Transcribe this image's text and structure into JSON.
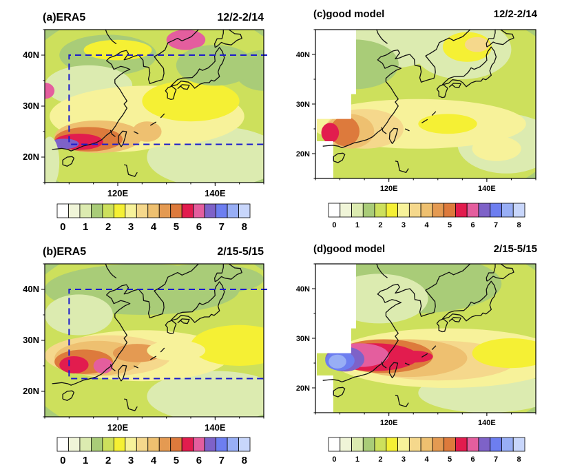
{
  "colorbar": {
    "colors": [
      "#ffffff",
      "#f0f5d8",
      "#dcebb0",
      "#a9cc78",
      "#cde05c",
      "#f5f034",
      "#f7f29a",
      "#f5d88c",
      "#eec070",
      "#e49a52",
      "#dd7a3c",
      "#e21c4e",
      "#e45e9e",
      "#7e62c8",
      "#6d7ef0",
      "#98aef5",
      "#c8d6fb"
    ],
    "tick_labels": [
      "0",
      "1",
      "2",
      "3",
      "4",
      "5",
      "6",
      "7",
      "8"
    ]
  },
  "panels": [
    {
      "label": "(a)ERA5",
      "period": "12/2-2/14",
      "lat_labels": [
        "40N",
        "30N",
        "20N"
      ],
      "lon_labels": [
        "120E",
        "140E"
      ],
      "box": true
    },
    {
      "label": "(c)good model",
      "period": "12/2-2/14",
      "lat_labels": [
        "40N",
        "30N",
        "20N"
      ],
      "lon_labels": [
        "120E",
        "140E"
      ],
      "box": false
    },
    {
      "label": "(b)ERA5",
      "period": "2/15-5/15",
      "lat_labels": [
        "40N",
        "30N",
        "20N"
      ],
      "lon_labels": [
        "120E",
        "140E"
      ],
      "box": true
    },
    {
      "label": "(d)good model",
      "period": "2/15-5/15",
      "lat_labels": [
        "40N",
        "30N",
        "20N"
      ],
      "lon_labels": [
        "120E",
        "140E"
      ],
      "box": false
    }
  ]
}
